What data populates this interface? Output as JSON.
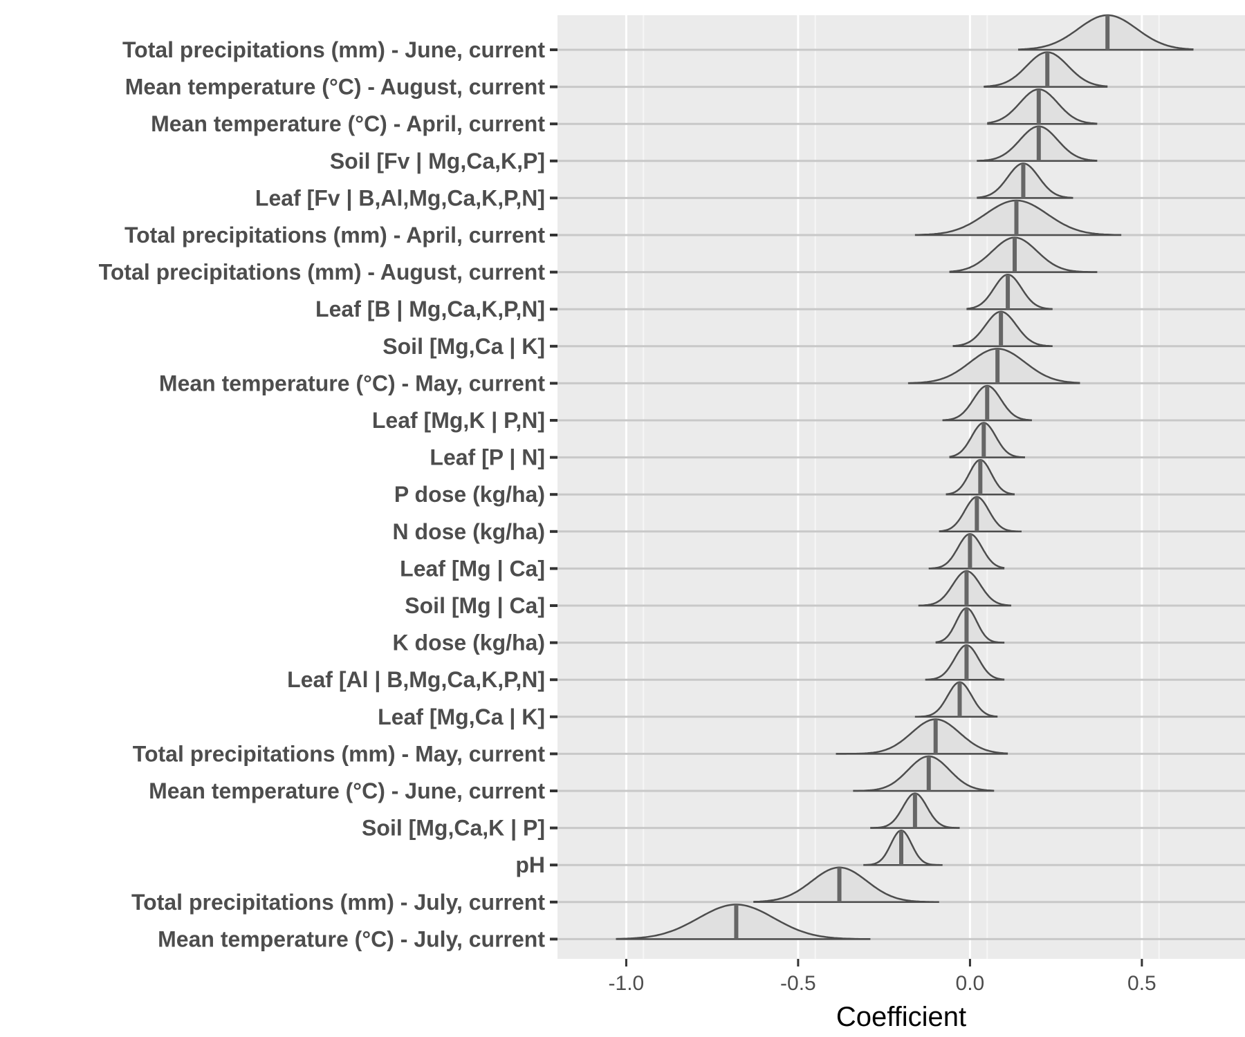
{
  "chart_data": {
    "type": "ridgeline",
    "xlabel": "Coefficient",
    "ylabel": "",
    "xlim": [
      -1.2,
      0.8
    ],
    "x_ticks": [
      -1.0,
      -0.5,
      0.0,
      0.5
    ],
    "x_tick_labels": [
      "-1.0",
      "-0.5",
      "0.0",
      "0.5"
    ],
    "grid": true,
    "colors": {
      "panel": "#ebebeb",
      "fill": "#e0e0e0",
      "stroke": "#4d4d4d",
      "median": "#666666",
      "gridline": "#c8c8c8"
    },
    "series": [
      {
        "label": "Total precipitations (mm) - June, current",
        "median": 0.4,
        "low": 0.14,
        "high": 0.65,
        "sd": 0.085
      },
      {
        "label": "Mean temperature (°C) - August, current",
        "median": 0.225,
        "low": 0.04,
        "high": 0.4,
        "sd": 0.06
      },
      {
        "label": "Mean temperature (°C) - April, current",
        "median": 0.2,
        "low": 0.05,
        "high": 0.37,
        "sd": 0.055
      },
      {
        "label": "Soil [Fv | Mg,Ca,K,P]",
        "median": 0.2,
        "low": 0.02,
        "high": 0.37,
        "sd": 0.055
      },
      {
        "label": "Leaf [Fv | B,Al,Mg,Ca,K,P,N]",
        "median": 0.155,
        "low": 0.02,
        "high": 0.3,
        "sd": 0.045
      },
      {
        "label": "Total precipitations (mm) - April, current",
        "median": 0.135,
        "low": -0.16,
        "high": 0.44,
        "sd": 0.09
      },
      {
        "label": "Total precipitations (mm) - August, current",
        "median": 0.13,
        "low": -0.06,
        "high": 0.37,
        "sd": 0.065
      },
      {
        "label": "Leaf [B | Mg,Ca,K,P,N]",
        "median": 0.11,
        "low": -0.01,
        "high": 0.24,
        "sd": 0.04
      },
      {
        "label": "Soil [Mg,Ca | K]",
        "median": 0.09,
        "low": -0.05,
        "high": 0.24,
        "sd": 0.045
      },
      {
        "label": "Mean temperature (°C) - May, current",
        "median": 0.08,
        "low": -0.18,
        "high": 0.32,
        "sd": 0.08
      },
      {
        "label": "Leaf [Mg,K | P,N]",
        "median": 0.05,
        "low": -0.08,
        "high": 0.18,
        "sd": 0.04
      },
      {
        "label": "Leaf [P | N]",
        "median": 0.04,
        "low": -0.06,
        "high": 0.16,
        "sd": 0.035
      },
      {
        "label": "P dose (kg/ha)",
        "median": 0.03,
        "low": -0.07,
        "high": 0.13,
        "sd": 0.032
      },
      {
        "label": "N dose (kg/ha)",
        "median": 0.02,
        "low": -0.09,
        "high": 0.15,
        "sd": 0.035
      },
      {
        "label": "Leaf [Mg | Ca]",
        "median": 0.0,
        "low": -0.12,
        "high": 0.1,
        "sd": 0.035
      },
      {
        "label": "Soil [Mg | Ca]",
        "median": -0.01,
        "low": -0.15,
        "high": 0.12,
        "sd": 0.04
      },
      {
        "label": "K dose (kg/ha)",
        "median": -0.01,
        "low": -0.1,
        "high": 0.1,
        "sd": 0.03
      },
      {
        "label": "Leaf [Al | B,Mg,Ca,K,P,N]",
        "median": -0.01,
        "low": -0.13,
        "high": 0.1,
        "sd": 0.035
      },
      {
        "label": "Leaf [Mg,Ca | K]",
        "median": -0.03,
        "low": -0.16,
        "high": 0.08,
        "sd": 0.035
      },
      {
        "label": "Total precipitations (mm) - May, current",
        "median": -0.1,
        "low": -0.39,
        "high": 0.11,
        "sd": 0.07
      },
      {
        "label": "Mean temperature (°C) - June, current",
        "median": -0.12,
        "low": -0.34,
        "high": 0.07,
        "sd": 0.06
      },
      {
        "label": "Soil [Mg,Ca,K | P]",
        "median": -0.16,
        "low": -0.29,
        "high": -0.03,
        "sd": 0.035
      },
      {
        "label": "pH",
        "median": -0.2,
        "low": -0.31,
        "high": -0.08,
        "sd": 0.03
      },
      {
        "label": "Total precipitations (mm) - July, current",
        "median": -0.38,
        "low": -0.63,
        "high": -0.09,
        "sd": 0.08
      },
      {
        "label": "Mean temperature (°C) - July, current",
        "median": -0.68,
        "low": -1.03,
        "high": -0.29,
        "sd": 0.11
      }
    ]
  }
}
